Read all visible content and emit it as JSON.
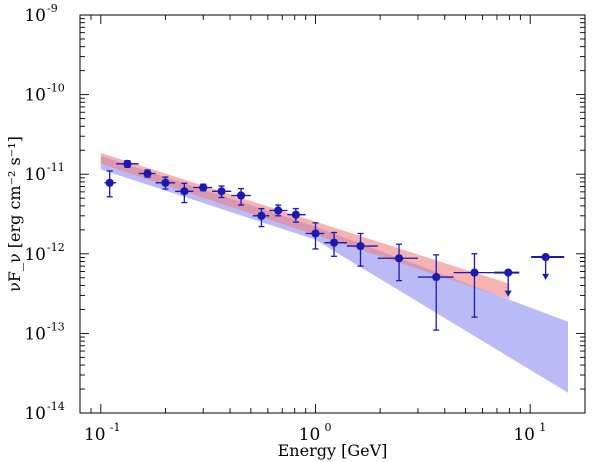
{
  "chart_data": {
    "type": "scatter",
    "xlabel": "Energy [GeV]",
    "ylabel": "νF_ν [erg cm⁻² s⁻¹]",
    "xscale": "log",
    "yscale": "log",
    "xlim": [
      0.08,
      18
    ],
    "ylim": [
      1e-14,
      1e-09
    ],
    "x_ticks": [
      {
        "value": 0.1,
        "base": "10",
        "exp": "-1"
      },
      {
        "value": 1,
        "base": "10",
        "exp": "0"
      },
      {
        "value": 10,
        "base": "10",
        "exp": "1"
      }
    ],
    "y_ticks": [
      {
        "value": 1e-14,
        "base": "10",
        "exp": "-14"
      },
      {
        "value": 1e-13,
        "base": "10",
        "exp": "-13"
      },
      {
        "value": 1e-12,
        "base": "10",
        "exp": "-12"
      },
      {
        "value": 1e-11,
        "base": "10",
        "exp": "-11"
      },
      {
        "value": 1e-10,
        "base": "10",
        "exp": "-10"
      },
      {
        "value": 1e-09,
        "base": "10",
        "exp": "-9"
      }
    ],
    "colors": {
      "points": "#1a1ab0",
      "band_blue": "#8f8ff2",
      "band_red": "#f08080",
      "band_overlap": "#b46ec8"
    },
    "bands": [
      {
        "name": "",
        "color": "band_blue",
        "x": [
          0.1,
          1,
          15
        ],
        "upper": [
          1.7e-11,
          2.2e-12,
          1.4e-13
        ],
        "lower": [
          1.15e-11,
          1.5e-12,
          1.8e-14
        ]
      },
      {
        "name": "",
        "color": "band_red",
        "x": [
          0.1,
          8
        ],
        "upper": [
          1.85e-11,
          4.2e-13
        ],
        "lower": [
          1.35e-11,
          2.7e-13
        ]
      }
    ],
    "points": [
      {
        "x": 0.11,
        "y": 7.8e-12,
        "xlo": 0.104,
        "xhi": 0.118,
        "ylo": 5.2e-12,
        "yhi": 1.1e-11
      },
      {
        "x": 0.133,
        "y": 1.35e-11,
        "xlo": 0.118,
        "xhi": 0.15,
        "ylo": 1.22e-11,
        "yhi": 1.48e-11
      },
      {
        "x": 0.165,
        "y": 1.02e-11,
        "xlo": 0.15,
        "xhi": 0.18,
        "ylo": 9.2e-12,
        "yhi": 1.13e-11
      },
      {
        "x": 0.2,
        "y": 7.8e-12,
        "xlo": 0.18,
        "xhi": 0.222,
        "ylo": 6.5e-12,
        "yhi": 9.2e-12
      },
      {
        "x": 0.245,
        "y": 6.1e-12,
        "xlo": 0.222,
        "xhi": 0.27,
        "ylo": 4.4e-12,
        "yhi": 7.7e-12
      },
      {
        "x": 0.3,
        "y": 6.8e-12,
        "xlo": 0.27,
        "xhi": 0.33,
        "ylo": 6.2e-12,
        "yhi": 7.5e-12
      },
      {
        "x": 0.365,
        "y": 6.1e-12,
        "xlo": 0.33,
        "xhi": 0.405,
        "ylo": 5.1e-12,
        "yhi": 7.1e-12
      },
      {
        "x": 0.45,
        "y": 5.4e-12,
        "xlo": 0.405,
        "xhi": 0.5,
        "ylo": 4.1e-12,
        "yhi": 6.6e-12
      },
      {
        "x": 0.56,
        "y": 3e-12,
        "xlo": 0.51,
        "xhi": 0.61,
        "ylo": 2.2e-12,
        "yhi": 3.7e-12
      },
      {
        "x": 0.67,
        "y": 3.5e-12,
        "xlo": 0.61,
        "xhi": 0.74,
        "ylo": 3e-12,
        "yhi": 4.1e-12
      },
      {
        "x": 0.81,
        "y": 3.1e-12,
        "xlo": 0.74,
        "xhi": 0.9,
        "ylo": 2.5e-12,
        "yhi": 3.7e-12
      },
      {
        "x": 1.0,
        "y": 1.8e-12,
        "xlo": 0.9,
        "xhi": 1.1,
        "ylo": 1.15e-12,
        "yhi": 2.45e-12
      },
      {
        "x": 1.22,
        "y": 1.38e-12,
        "xlo": 1.1,
        "xhi": 1.4,
        "ylo": 9.3e-13,
        "yhi": 1.85e-12
      },
      {
        "x": 1.62,
        "y": 1.25e-12,
        "xlo": 1.4,
        "xhi": 1.95,
        "ylo": 7e-13,
        "yhi": 1.8e-12
      },
      {
        "x": 2.45,
        "y": 8.8e-13,
        "xlo": 1.95,
        "xhi": 3.0,
        "ylo": 4.6e-13,
        "yhi": 1.32e-12
      },
      {
        "x": 3.65,
        "y": 5.1e-13,
        "xlo": 3.0,
        "xhi": 4.4,
        "ylo": 1.1e-13,
        "yhi": 9.7e-13
      },
      {
        "x": 5.5,
        "y": 5.8e-13,
        "xlo": 4.4,
        "xhi": 6.8,
        "ylo": 1.6e-13,
        "yhi": 1e-12
      }
    ],
    "upper_limits": [
      {
        "x": 7.9,
        "y": 5.8e-13,
        "xlo": 6.8,
        "xhi": 8.9,
        "arrow_to": 2.9e-13
      },
      {
        "x": 11.8,
        "y": 9.1e-13,
        "xlo": 10.1,
        "xhi": 14.4,
        "arrow_to": 4.7e-13
      }
    ]
  }
}
